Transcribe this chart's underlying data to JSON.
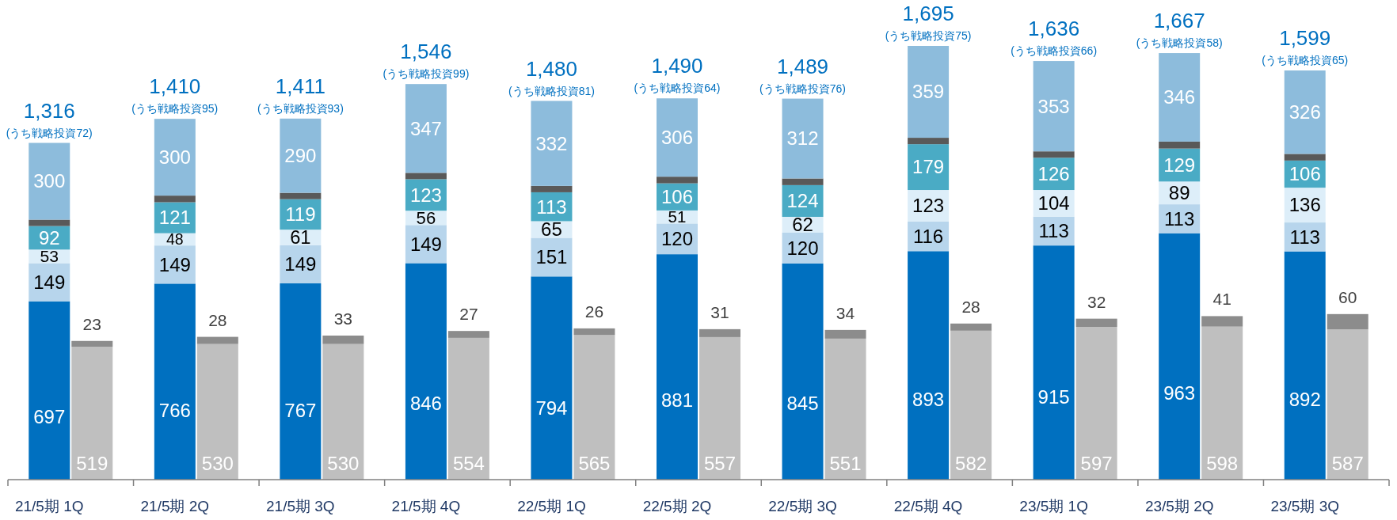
{
  "chart_data": {
    "type": "bar",
    "stacked": true,
    "categories": [
      "21/5期 1Q",
      null,
      "21/5期 2Q",
      null,
      "21/5期 3Q",
      null,
      "21/5期 4Q",
      null,
      "22/5期 1Q",
      null,
      "22/5期 2Q",
      null,
      "22/5期 3Q",
      null,
      "22/5期 4Q",
      null,
      "23/5期 1Q",
      null,
      "23/5期 2Q",
      null,
      "23/5期 3Q",
      null
    ],
    "series": [
      {
        "color": "#0070c0",
        "values": [
          697,
          null,
          766,
          null,
          767,
          null,
          846,
          null,
          794,
          null,
          881,
          null,
          845,
          null,
          893,
          null,
          915,
          null,
          963,
          null,
          892,
          null
        ],
        "value_labels": [
          "697",
          null,
          "766",
          null,
          "767",
          null,
          "846",
          null,
          "794",
          null,
          "881",
          null,
          "845",
          null,
          "893",
          null,
          "915",
          null,
          "963",
          null,
          "892",
          null
        ]
      },
      {
        "color": "#b7d5ec",
        "values": [
          149,
          null,
          149,
          null,
          149,
          null,
          149,
          null,
          151,
          null,
          120,
          null,
          120,
          null,
          116,
          null,
          113,
          null,
          113,
          null,
          113,
          null
        ],
        "value_labels": [
          "149",
          null,
          "149",
          null,
          "149",
          null,
          "149",
          null,
          "151",
          null,
          "120",
          null,
          "120",
          null,
          "116",
          null,
          "113",
          null,
          "113",
          null,
          "113",
          null
        ]
      },
      {
        "color": "#ddeef9",
        "values": [
          53,
          null,
          48,
          null,
          61,
          null,
          56,
          null,
          65,
          null,
          51,
          null,
          62,
          null,
          123,
          null,
          104,
          null,
          89,
          null,
          136,
          null
        ],
        "value_labels": [
          "53",
          null,
          "48",
          null,
          "61",
          null,
          "56",
          null,
          "65",
          null,
          "51",
          null,
          "62",
          null,
          "123",
          null,
          "104",
          null,
          "89",
          null,
          "136",
          null
        ]
      },
      {
        "color": "#4aabc5",
        "values": [
          92,
          null,
          121,
          null,
          119,
          null,
          123,
          null,
          113,
          null,
          106,
          null,
          124,
          null,
          179,
          null,
          126,
          null,
          129,
          null,
          106,
          null
        ],
        "value_labels": [
          "92",
          null,
          "121",
          null,
          "119",
          null,
          "123",
          null,
          "113",
          null,
          "106",
          null,
          "124",
          null,
          "179",
          null,
          "126",
          null,
          "129",
          null,
          "106",
          null
        ]
      },
      {
        "color": "#595959",
        "values": [
          25,
          null,
          26,
          null,
          25,
          null,
          25,
          null,
          25,
          null,
          26,
          null,
          26,
          null,
          25,
          null,
          25,
          null,
          27,
          null,
          26,
          null
        ],
        "value_labels": [
          null,
          null,
          null,
          null,
          null,
          null,
          null,
          null,
          null,
          null,
          null,
          null,
          null,
          null,
          null,
          null,
          null,
          null,
          null,
          null,
          null,
          null
        ]
      },
      {
        "color": "#8dbcdc",
        "values": [
          300,
          null,
          300,
          null,
          290,
          null,
          347,
          null,
          332,
          null,
          306,
          null,
          312,
          null,
          359,
          null,
          353,
          null,
          346,
          null,
          326,
          null
        ],
        "value_labels": [
          "300",
          null,
          "300",
          null,
          "290",
          null,
          "347",
          null,
          "332",
          null,
          "306",
          null,
          "312",
          null,
          "359",
          null,
          "353",
          null,
          "346",
          null,
          "326",
          null
        ]
      },
      {
        "color": "#bfbfbf",
        "values": [
          null,
          519,
          null,
          530,
          null,
          530,
          null,
          554,
          null,
          565,
          null,
          557,
          null,
          551,
          null,
          582,
          null,
          597,
          null,
          598,
          null,
          587
        ],
        "value_labels": [
          null,
          "519",
          null,
          "530",
          null,
          "530",
          null,
          "554",
          null,
          "565",
          null,
          "557",
          null,
          "551",
          null,
          "582",
          null,
          "597",
          null,
          "598",
          null,
          "587"
        ]
      },
      {
        "color": "#8c8c8c",
        "values": [
          null,
          23,
          null,
          28,
          null,
          33,
          null,
          27,
          null,
          26,
          null,
          31,
          null,
          34,
          null,
          28,
          null,
          32,
          null,
          41,
          null,
          60
        ],
        "value_labels": [
          null,
          "23",
          null,
          "28",
          null,
          "33",
          null,
          "27",
          null,
          "26",
          null,
          "31",
          null,
          "34",
          null,
          "28",
          null,
          "32",
          null,
          "41",
          null,
          "60"
        ]
      }
    ],
    "totals": [
      "1,316",
      null,
      "1,410",
      null,
      "1,411",
      null,
      "1,546",
      null,
      "1,480",
      null,
      "1,490",
      null,
      "1,489",
      null,
      "1,695",
      null,
      "1,636",
      null,
      "1,667",
      null,
      "1,599",
      null
    ],
    "annotations": [
      {
        "text": "(うち戦略投資72)",
        "x": "21/5期 1Q",
        "y": 1316
      },
      {
        "text": "(うち戦略投資95)",
        "x": "21/5期 2Q",
        "y": 1410
      },
      {
        "text": "(うち戦略投資93)",
        "x": "21/5期 3Q",
        "y": 1411
      },
      {
        "text": "(うち戦略投資99)",
        "x": "21/5期 4Q",
        "y": 1546
      },
      {
        "text": "(うち戦略投資81)",
        "x": "22/5期 1Q",
        "y": 1480
      },
      {
        "text": "(うち戦略投資64)",
        "x": "22/5期 2Q",
        "y": 1490
      },
      {
        "text": "(うち戦略投資76)",
        "x": "22/5期 3Q",
        "y": 1489
      },
      {
        "text": "(うち戦略投資75)",
        "x": "22/5期 4Q",
        "y": 1695
      },
      {
        "text": "(うち戦略投資66)",
        "x": "23/5期 1Q",
        "y": 1636
      },
      {
        "text": "(うち戦略投資58)",
        "x": "23/5期 2Q",
        "y": 1667
      },
      {
        "text": "(うち戦略投資65)",
        "x": "23/5期 3Q",
        "y": 1599
      }
    ]
  }
}
